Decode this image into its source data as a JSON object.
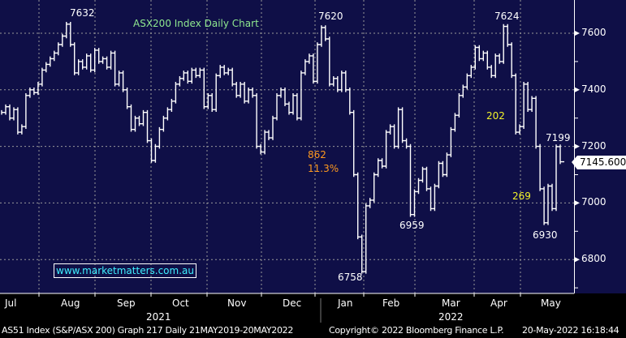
{
  "chart_data": {
    "type": "bar",
    "title": "ASX200 Index Daily Chart",
    "ylim": [
      6680,
      7720
    ],
    "y_ticks": [
      "7600",
      "7400",
      "7200",
      "7000",
      "6800"
    ],
    "y_tick_values": [
      7600,
      7400,
      7200,
      7000,
      6800
    ],
    "months": [
      "Jul",
      "Aug",
      "Sep",
      "Oct",
      "Nov",
      "Dec",
      "Jan",
      "Feb",
      "Mar",
      "Apr",
      "May"
    ],
    "years": [
      "2021",
      "2022"
    ],
    "last_price": "7145.600",
    "closes": [
      7320,
      7340,
      7300,
      7330,
      7250,
      7270,
      7380,
      7400,
      7390,
      7420,
      7470,
      7490,
      7510,
      7530,
      7560,
      7590,
      7632,
      7560,
      7460,
      7500,
      7480,
      7520,
      7470,
      7540,
      7500,
      7510,
      7480,
      7530,
      7420,
      7460,
      7400,
      7340,
      7260,
      7300,
      7280,
      7320,
      7220,
      7150,
      7200,
      7260,
      7300,
      7330,
      7360,
      7420,
      7440,
      7460,
      7430,
      7470,
      7450,
      7470,
      7340,
      7380,
      7330,
      7450,
      7480,
      7460,
      7470,
      7420,
      7380,
      7420,
      7360,
      7400,
      7380,
      7200,
      7180,
      7250,
      7230,
      7300,
      7380,
      7400,
      7350,
      7320,
      7380,
      7300,
      7460,
      7500,
      7520,
      7430,
      7560,
      7620,
      7580,
      7420,
      7440,
      7400,
      7460,
      7400,
      7320,
      7100,
      6880,
      6758,
      6990,
      7010,
      7100,
      7150,
      7130,
      7250,
      7270,
      7200,
      7330,
      7220,
      7200,
      6959,
      7040,
      7080,
      7120,
      7050,
      6980,
      7060,
      7140,
      7100,
      7170,
      7260,
      7310,
      7380,
      7410,
      7450,
      7480,
      7550,
      7510,
      7530,
      7480,
      7450,
      7520,
      7500,
      7624,
      7560,
      7450,
      7250,
      7270,
      7420,
      7330,
      7370,
      7200,
      7050,
      6930,
      7060,
      6980,
      7199,
      7145.6
    ],
    "annotations": {
      "peak_aug": "7632",
      "peak_jan": "7620",
      "peak_apr": "7624",
      "low_jan": "6758",
      "low_feb": "6959",
      "low_may": "6930",
      "high_may": "7199",
      "drop_points": "862",
      "drop_pct": "11.3%",
      "apr_drop": "202",
      "may_bounce": "269"
    },
    "colors": {
      "background": "#0f0f47",
      "bars": "#ffffff",
      "title": "#8fe88f",
      "orange": "#ff9a1f",
      "yellow": "#f2f22a",
      "site": "#3ff0ff"
    }
  },
  "watermark": "www.marketmatters.com.au",
  "footer": {
    "left": "AS51 Index (S&P/ASX 200) Graph 217  Daily 21MAY2019-20MAY2022",
    "center": "Copyright© 2022 Bloomberg Finance L.P.",
    "right": "20-May-2022 16:18:44"
  }
}
